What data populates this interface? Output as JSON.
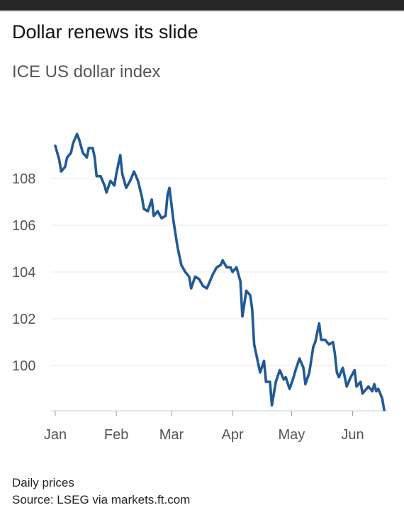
{
  "title": "Dollar renews its slide",
  "subtitle": "ICE US dollar index",
  "footnote": "Daily prices",
  "source": "Source: LSEG via markets.ft.com",
  "colors": {
    "line": "#1f5a96",
    "grid": "#e8e8e8",
    "axis": "#cfcfcf"
  },
  "chart_data": {
    "type": "line",
    "title": "Dollar renews its slide",
    "subtitle": "ICE US dollar index",
    "xlabel": "",
    "ylabel": "",
    "ylim": [
      98,
      110
    ],
    "y_ticks": [
      100,
      102,
      104,
      106,
      108
    ],
    "x_ticks": [
      {
        "label": "Jan",
        "date": "2025-01-01"
      },
      {
        "label": "Feb",
        "date": "2025-02-01"
      },
      {
        "label": "Mar",
        "date": "2025-03-01"
      },
      {
        "label": "Apr",
        "date": "2025-04-01"
      },
      {
        "label": "May",
        "date": "2025-05-01"
      },
      {
        "label": "Jun",
        "date": "2025-06-01"
      }
    ],
    "grid": true,
    "series": [
      {
        "values": [
          [
            "2025-01-01",
            109.4
          ],
          [
            "2025-01-03",
            108.8
          ],
          [
            "2025-01-04",
            108.3
          ],
          [
            "2025-01-06",
            108.5
          ],
          [
            "2025-01-07",
            108.9
          ],
          [
            "2025-01-09",
            109.1
          ],
          [
            "2025-01-10",
            109.5
          ],
          [
            "2025-01-12",
            109.9
          ],
          [
            "2025-01-13",
            109.7
          ],
          [
            "2025-01-15",
            109.1
          ],
          [
            "2025-01-17",
            108.9
          ],
          [
            "2025-01-18",
            109.3
          ],
          [
            "2025-01-20",
            109.3
          ],
          [
            "2025-01-21",
            108.9
          ],
          [
            "2025-01-22",
            108.1
          ],
          [
            "2025-01-24",
            108.1
          ],
          [
            "2025-01-26",
            107.7
          ],
          [
            "2025-01-27",
            107.4
          ],
          [
            "2025-01-29",
            107.9
          ],
          [
            "2025-01-31",
            107.7
          ],
          [
            "2025-02-01",
            108.2
          ],
          [
            "2025-02-03",
            109.0
          ],
          [
            "2025-02-04",
            108.2
          ],
          [
            "2025-02-06",
            107.6
          ],
          [
            "2025-02-08",
            107.9
          ],
          [
            "2025-02-10",
            108.3
          ],
          [
            "2025-02-12",
            107.9
          ],
          [
            "2025-02-14",
            107.2
          ],
          [
            "2025-02-15",
            106.7
          ],
          [
            "2025-02-17",
            106.6
          ],
          [
            "2025-02-19",
            107.1
          ],
          [
            "2025-02-20",
            106.4
          ],
          [
            "2025-02-22",
            106.6
          ],
          [
            "2025-02-24",
            106.3
          ],
          [
            "2025-02-26",
            106.4
          ],
          [
            "2025-02-27",
            107.3
          ],
          [
            "2025-02-28",
            107.6
          ],
          [
            "2025-03-02",
            106.2
          ],
          [
            "2025-03-04",
            105.1
          ],
          [
            "2025-03-06",
            104.3
          ],
          [
            "2025-03-08",
            104.0
          ],
          [
            "2025-03-10",
            103.8
          ],
          [
            "2025-03-11",
            103.3
          ],
          [
            "2025-03-13",
            103.8
          ],
          [
            "2025-03-15",
            103.7
          ],
          [
            "2025-03-17",
            103.4
          ],
          [
            "2025-03-19",
            103.3
          ],
          [
            "2025-03-20",
            103.5
          ],
          [
            "2025-03-22",
            103.9
          ],
          [
            "2025-03-24",
            104.2
          ],
          [
            "2025-03-26",
            104.3
          ],
          [
            "2025-03-27",
            104.5
          ],
          [
            "2025-03-29",
            104.2
          ],
          [
            "2025-03-31",
            104.2
          ],
          [
            "2025-04-01",
            104.0
          ],
          [
            "2025-04-03",
            104.2
          ],
          [
            "2025-04-05",
            103.6
          ],
          [
            "2025-04-06",
            102.1
          ],
          [
            "2025-04-08",
            103.2
          ],
          [
            "2025-04-10",
            103.0
          ],
          [
            "2025-04-11",
            102.4
          ],
          [
            "2025-04-12",
            100.9
          ],
          [
            "2025-04-14",
            100.1
          ],
          [
            "2025-04-15",
            99.7
          ],
          [
            "2025-04-17",
            100.2
          ],
          [
            "2025-04-18",
            99.3
          ],
          [
            "2025-04-20",
            99.3
          ],
          [
            "2025-04-21",
            98.3
          ],
          [
            "2025-04-23",
            99.3
          ],
          [
            "2025-04-25",
            99.8
          ],
          [
            "2025-04-27",
            99.4
          ],
          [
            "2025-04-28",
            99.5
          ],
          [
            "2025-04-30",
            99.0
          ],
          [
            "2025-05-02",
            99.5
          ],
          [
            "2025-05-03",
            99.8
          ],
          [
            "2025-05-05",
            100.3
          ],
          [
            "2025-05-07",
            99.9
          ],
          [
            "2025-05-08",
            99.2
          ],
          [
            "2025-05-10",
            99.7
          ],
          [
            "2025-05-12",
            100.8
          ],
          [
            "2025-05-13",
            101.0
          ],
          [
            "2025-05-15",
            101.8
          ],
          [
            "2025-05-16",
            101.1
          ],
          [
            "2025-05-18",
            101.1
          ],
          [
            "2025-05-20",
            100.9
          ],
          [
            "2025-05-22",
            101.0
          ],
          [
            "2025-05-23",
            100.5
          ],
          [
            "2025-05-24",
            99.7
          ],
          [
            "2025-05-25",
            99.5
          ],
          [
            "2025-05-27",
            99.9
          ],
          [
            "2025-05-29",
            99.1
          ],
          [
            "2025-05-31",
            99.5
          ],
          [
            "2025-06-02",
            99.8
          ],
          [
            "2025-06-03",
            99.1
          ],
          [
            "2025-06-05",
            99.3
          ],
          [
            "2025-06-06",
            98.8
          ],
          [
            "2025-06-07",
            98.9
          ],
          [
            "2025-06-09",
            99.1
          ],
          [
            "2025-06-11",
            98.9
          ],
          [
            "2025-06-12",
            99.2
          ],
          [
            "2025-06-13",
            98.9
          ],
          [
            "2025-06-14",
            99.0
          ],
          [
            "2025-06-16",
            98.6
          ],
          [
            "2025-06-17",
            98.1
          ]
        ]
      }
    ]
  }
}
